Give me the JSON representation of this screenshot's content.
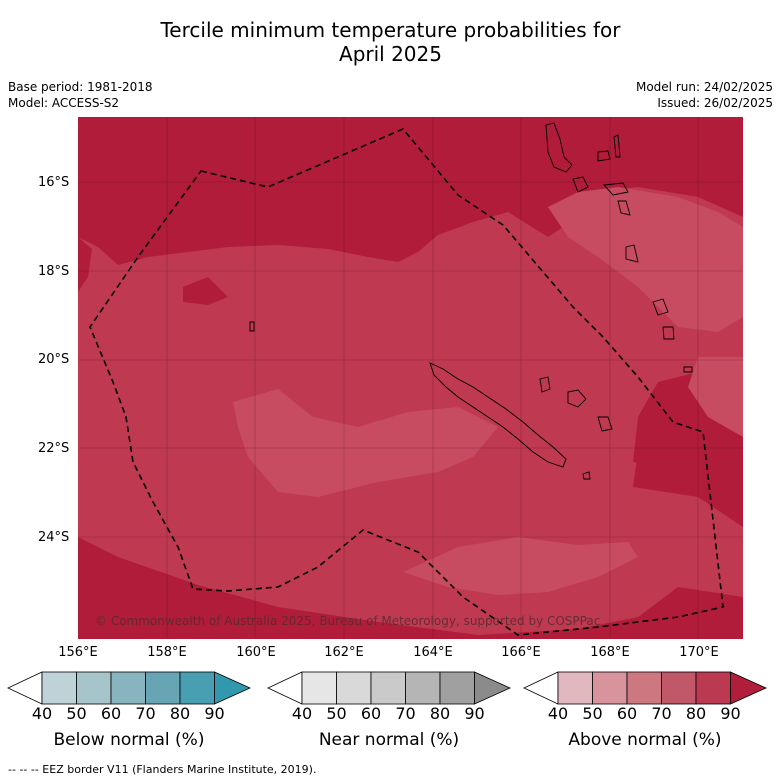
{
  "title_line1": "Tercile minimum temperature probabilities for",
  "title_line2": "April 2025",
  "base_period": "Base period: 1981-2018",
  "model": "Model: ACCESS-S2",
  "model_run": "Model run: 24/02/2025",
  "issued": "Issued: 26/02/2025",
  "lat_labels": [
    "16°S",
    "18°S",
    "20°S",
    "22°S",
    "24°S"
  ],
  "lon_labels": [
    "156°E",
    "158°E",
    "160°E",
    "162°E",
    "164°E",
    "166°E",
    "168°E",
    "170°E"
  ],
  "copyright": "© Commonwealth of Australia 2025, Bureau of Meteorology, supported by COSPPac",
  "colorbars": [
    {
      "name": "Below normal (%)",
      "ticks": [
        "40",
        "50",
        "60",
        "70",
        "80",
        "90"
      ],
      "colors": [
        "#ffffff",
        "#bed2d8",
        "#a6c5cb",
        "#88b4bf",
        "#67a5b5",
        "#479fb1",
        "#3298ad"
      ]
    },
    {
      "name": "Near normal (%)",
      "ticks": [
        "40",
        "50",
        "60",
        "70",
        "80",
        "90"
      ],
      "colors": [
        "#ffffff",
        "#e6e6e6",
        "#d9d9d9",
        "#cacaca",
        "#b5b5b5",
        "#a0a0a0",
        "#8b8b8b"
      ]
    },
    {
      "name": "Above normal (%)",
      "ticks": [
        "40",
        "50",
        "60",
        "70",
        "80",
        "90"
      ],
      "colors": [
        "#ffffff",
        "#e2b8bf",
        "#d7949d",
        "#cd7780",
        "#c15869",
        "#bb3a51",
        "#b01e3b"
      ]
    }
  ],
  "map_colors": {
    "dark": "#b01c3a",
    "mid": "#bf3a51",
    "light": "#c74c61"
  },
  "footer": "--  --  -- EEZ border V11 (Flanders Marine Institute, 2019)."
}
